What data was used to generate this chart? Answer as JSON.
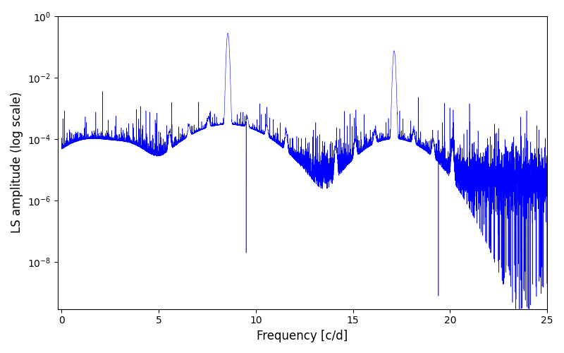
{
  "xlabel": "Frequency [c/d]",
  "ylabel": "LS amplitude (log scale)",
  "xlim": [
    -0.2,
    25
  ],
  "ylim": [
    3e-10,
    1.0
  ],
  "line_color": "blue",
  "line_width": 0.4,
  "yscale": "log",
  "figsize": [
    8.0,
    5.0
  ],
  "dpi": 100,
  "freq_min": 0.0,
  "freq_max": 25.0,
  "n_points": 8000,
  "peak1_freq": 8.56,
  "peak1_amp": 0.28,
  "peak2_freq": 17.12,
  "peak2_amp": 0.075,
  "noise_baseline": 5e-06,
  "seed": 12345
}
